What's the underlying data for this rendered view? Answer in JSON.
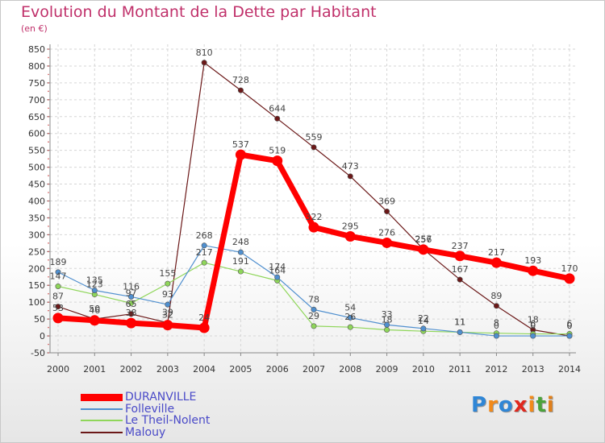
{
  "chart_data": {
    "type": "line",
    "title": "Evolution du Montant de la Dette par Habitant",
    "ylabel": "(en €)",
    "xlabel": "",
    "ylim": [
      -50,
      850
    ],
    "yticks": [
      "-50",
      "0",
      "50",
      "100",
      "150",
      "200",
      "250",
      "300",
      "350",
      "400",
      "450",
      "500",
      "550",
      "600",
      "650",
      "700",
      "750",
      "800",
      "850"
    ],
    "categories": [
      "2000",
      "2001",
      "2002",
      "2003",
      "2004",
      "2005",
      "2006",
      "2007",
      "2008",
      "2009",
      "2010",
      "2011",
      "2012",
      "2013",
      "2014"
    ],
    "series": [
      {
        "name": "DURANVILLE",
        "color": "#ff0000",
        "values": [
          53,
          46,
          38,
          32,
          24,
          537,
          519,
          322,
          295,
          276,
          256,
          237,
          217,
          193,
          170
        ]
      },
      {
        "name": "Folleville",
        "color": "#4f8fcf",
        "values": [
          189,
          135,
          116,
          93,
          268,
          248,
          174,
          78,
          54,
          33,
          22,
          11,
          0,
          0,
          0
        ]
      },
      {
        "name": "Le Theil-Nolent",
        "color": "#8fd65a",
        "values": [
          147,
          123,
          97,
          155,
          217,
          191,
          164,
          29,
          26,
          18,
          14,
          11,
          8,
          6,
          6
        ]
      },
      {
        "name": "Malouy",
        "color": "#6b1818",
        "values": [
          87,
          50,
          65,
          39,
          810,
          728,
          644,
          559,
          473,
          369,
          257,
          167,
          89,
          18,
          0
        ]
      }
    ]
  },
  "logo": {
    "letters": [
      "P",
      "r",
      "o",
      "x",
      "i",
      "t",
      "i"
    ],
    "colors": [
      "#2f86d6",
      "#f28a1a",
      "#2f86d6",
      "#e0281e",
      "#f28a1a",
      "#4aa33a",
      "#e07f1a"
    ]
  }
}
